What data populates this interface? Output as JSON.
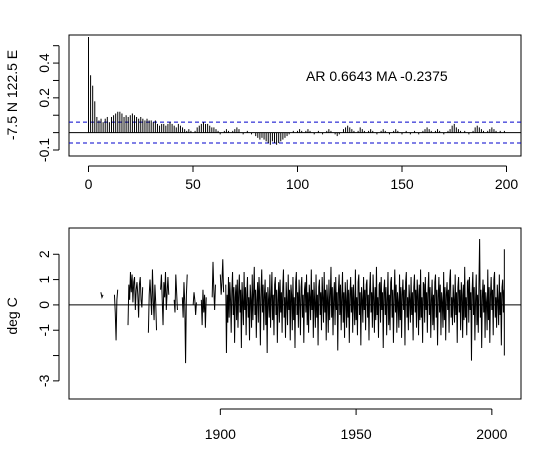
{
  "chart_data": [
    {
      "type": "bar",
      "panel": "acf",
      "ylabel": "-7.5 N 122.5 E",
      "annotation": "AR 0.6643  MA -0.2375",
      "xlim": [
        0,
        200
      ],
      "ylim": [
        -0.1,
        0.55
      ],
      "xticks": [
        "0",
        "50",
        "100",
        "150",
        "200"
      ],
      "yticks": [
        "-0.1",
        "0.2",
        "0.4"
      ],
      "confidence_band": 0.06,
      "lag_values": [
        0.55,
        0.33,
        0.27,
        0.18,
        0.09,
        0.07,
        0.08,
        0.06,
        0.08,
        0.09,
        0.06,
        0.09,
        0.1,
        0.11,
        0.12,
        0.12,
        0.11,
        0.09,
        0.1,
        0.09,
        0.1,
        0.11,
        0.1,
        0.09,
        0.08,
        0.09,
        0.08,
        0.07,
        0.08,
        0.07,
        0.07,
        0.06,
        0.07,
        0.05,
        0.04,
        0.05,
        0.05,
        0.04,
        0.05,
        0.06,
        0.05,
        0.04,
        0.03,
        0.05,
        0.04,
        0.03,
        0.02,
        0.01,
        0.02,
        0.01,
        0.0,
        0.01,
        0.03,
        0.04,
        0.05,
        0.06,
        0.05,
        0.05,
        0.04,
        0.03,
        0.03,
        0.02,
        0.01,
        -0.01,
        0.0,
        0.01,
        0.02,
        0.01,
        0.0,
        0.01,
        0.02,
        0.03,
        0.02,
        0.0,
        -0.01,
        0.0,
        0.01,
        0.0,
        -0.01,
        0.0,
        -0.02,
        -0.03,
        -0.04,
        -0.03,
        -0.04,
        -0.05,
        -0.06,
        -0.07,
        -0.05,
        -0.06,
        -0.07,
        -0.06,
        -0.05,
        -0.04,
        -0.03,
        -0.02,
        -0.01,
        0.0,
        0.01,
        0.0,
        0.01,
        0.02,
        0.01,
        0.0,
        0.01,
        0.02,
        0.01,
        0.0,
        -0.01,
        0.0,
        0.01,
        0.0,
        -0.01,
        0.0,
        0.01,
        0.02,
        0.01,
        0.0,
        -0.01,
        -0.02,
        -0.01,
        0.0,
        0.02,
        0.03,
        0.04,
        0.03,
        0.02,
        0.01,
        0.0,
        0.01,
        0.03,
        0.02,
        0.01,
        0.0,
        0.01,
        0.02,
        0.01,
        0.0,
        -0.01,
        0.0,
        0.01,
        0.02,
        0.01,
        0.0,
        -0.01,
        0.0,
        0.01,
        0.02,
        0.01,
        0.0,
        -0.01,
        0.0,
        0.01,
        0.0,
        -0.01,
        0.0,
        0.01,
        0.0,
        -0.01,
        0.0,
        0.01,
        0.02,
        0.03,
        0.02,
        0.01,
        0.0,
        0.01,
        0.02,
        0.01,
        0.0,
        -0.01,
        0.0,
        0.01,
        0.02,
        0.04,
        0.05,
        0.03,
        0.02,
        0.01,
        0.0,
        0.01,
        0.0,
        -0.01,
        0.0,
        0.01,
        0.03,
        0.04,
        0.03,
        0.02,
        0.01,
        0.0,
        0.01,
        0.02,
        0.03,
        0.02,
        0.01,
        0.0,
        0.01,
        0.0,
        0.01
      ]
    },
    {
      "type": "line",
      "panel": "series",
      "ylabel": "deg C",
      "xlim": [
        1845,
        2010
      ],
      "ylim": [
        -3.4,
        2.8
      ],
      "xticks": [
        "1900",
        "1950",
        "2000"
      ],
      "yticks": [
        "-3",
        "-1",
        "0",
        "1",
        "2"
      ],
      "segments": [
        {
          "x": [
            1856.0,
            1856.4,
            1856.8
          ],
          "y": [
            0.5,
            0.3,
            0.4
          ]
        },
        {
          "x": [
            1861.0,
            1861.3,
            1861.6,
            1861.9,
            1862.2
          ],
          "y": [
            0.4,
            -0.3,
            -1.4,
            0.2,
            0.6
          ]
        },
        {
          "x": [
            1866.0,
            1866.3,
            1866.6,
            1866.9,
            1867.2,
            1867.5,
            1867.8,
            1868.1,
            1868.4,
            1868.7,
            1869.0,
            1869.3,
            1869.6,
            1869.9,
            1870.2,
            1870.5,
            1870.8,
            1871.1,
            1871.4
          ],
          "y": [
            -0.8,
            0.8,
            0.2,
            1.3,
            0.5,
            1.2,
            0.1,
            0.9,
            1.1,
            -0.2,
            0.6,
            0.9,
            0.4,
            -0.5,
            0.8,
            1.1,
            0.2,
            -0.1,
            0.7
          ]
        },
        {
          "x": [
            1873.5,
            1873.8,
            1874.1,
            1874.4,
            1874.7,
            1875.0,
            1875.3,
            1875.6,
            1875.9,
            1876.2,
            1876.5
          ],
          "y": [
            -1.1,
            0.4,
            1.0,
            0.3,
            -0.4,
            1.4,
            0.2,
            -0.6,
            0.8,
            0.1,
            -1.0
          ]
        },
        {
          "x": [
            1878.0,
            1878.3,
            1878.6,
            1878.9,
            1879.2,
            1879.5,
            1879.8,
            1880.1,
            1880.4,
            1880.7,
            1881.0
          ],
          "y": [
            0.6,
            1.2,
            0.2,
            -0.8,
            0.9,
            0.3,
            1.3,
            -0.2,
            0.5,
            1.1,
            0.4
          ]
        },
        {
          "x": [
            1883.0,
            1883.3,
            1883.6,
            1883.9,
            1884.2
          ],
          "y": [
            0.2,
            -0.3,
            1.2,
            0.5,
            -0.2
          ]
        },
        {
          "x": [
            1886.0,
            1886.3,
            1886.6,
            1886.9,
            1887.2,
            1887.5,
            1887.8
          ],
          "y": [
            0.3,
            -0.5,
            0.9,
            0.1,
            -2.3,
            0.4,
            1.2
          ]
        },
        {
          "x": [
            1890.0,
            1890.3,
            1890.6,
            1890.9,
            1891.2
          ],
          "y": [
            0.0,
            0.5,
            0.2,
            -0.4,
            0.1
          ]
        },
        {
          "x": [
            1893.0,
            1893.3,
            1893.6,
            1893.9,
            1894.2,
            1894.5,
            1894.8
          ],
          "y": [
            0.2,
            -0.8,
            0.6,
            -0.3,
            0.4,
            -0.9,
            0.3
          ]
        },
        {
          "x": [
            1897.0,
            1897.3,
            1897.6,
            1897.9,
            1898.2
          ],
          "y": [
            0.3,
            1.7,
            0.6,
            -0.2,
            0.8
          ]
        },
        {
          "x": [
            1900.0,
            1900.3,
            1900.6,
            1900.9,
            1901.2
          ],
          "y": [
            1.2,
            0.4,
            0.9,
            1.8,
            0.5
          ]
        }
      ],
      "dense_from": 1902.0,
      "dense_to": 2004.6,
      "dense_step": 0.25,
      "dense_values_note_excluded": false,
      "dense_values": [
        0.8,
        -1.9,
        0.4,
        -0.7,
        1.1,
        -0.5,
        0.9,
        0.2,
        -1.1,
        0.6,
        1.3,
        -0.4,
        0.7,
        -1.5,
        0.3,
        0.8,
        -0.6,
        1.0,
        -0.9,
        0.5,
        1.2,
        -0.3,
        0.6,
        -1.7,
        0.9,
        0.1,
        -0.8,
        1.3,
        -0.2,
        0.7,
        -1.2,
        0.4,
        1.1,
        -0.5,
        0.3,
        -1.4,
        0.8,
        0.2,
        -0.9,
        1.2,
        -0.6,
        0.5,
        1.5,
        -0.4,
        0.6,
        -1.3,
        0.2,
        0.9,
        -0.7,
        1.1,
        0.3,
        -1.6,
        0.6,
        1.4,
        -0.3,
        0.8,
        -1.0,
        0.4,
        1.0,
        -0.8,
        0.5,
        -1.9,
        0.7,
        0.2,
        -0.5,
        1.2,
        -0.9,
        0.3,
        1.3,
        -0.6,
        0.4,
        -1.2,
        0.8,
        1.1,
        -0.4,
        0.6,
        -1.5,
        0.2,
        0.9,
        -0.7,
        1.0,
        -0.3,
        0.5,
        -1.1,
        0.7,
        1.4,
        -0.5,
        0.3,
        -1.3,
        0.9,
        0.1,
        -0.8,
        1.2,
        -0.2,
        0.6,
        -1.4,
        0.8,
        0.4,
        -1.0,
        1.1,
        -0.6,
        0.3,
        -1.7,
        0.9,
        1.3,
        -0.4,
        0.5,
        -0.9,
        1.0,
        0.2,
        -1.2,
        0.7,
        1.1,
        -0.5,
        0.4,
        -1.5,
        0.6,
        0.9,
        -0.3,
        1.2,
        -0.8,
        0.5,
        -1.1,
        0.8,
        0.3,
        -0.6,
        1.4,
        -0.2,
        0.6,
        -1.3,
        0.9,
        0.1,
        -0.9,
        1.2,
        -0.5,
        0.4,
        -1.6,
        0.7,
        1.0,
        -0.4,
        0.5,
        -1.0,
        1.1,
        0.3,
        -0.7,
        1.3,
        -0.3,
        0.6,
        -1.4,
        0.8,
        0.2,
        -1.1,
        1.0,
        -0.6,
        0.4,
        1.5,
        -0.5,
        0.7,
        -1.2,
        0.3,
        0.9,
        -0.8,
        1.1,
        -0.2,
        0.5,
        -1.8,
        0.6,
        1.2,
        -0.4,
        0.8,
        -1.0,
        0.3,
        1.3,
        -0.7,
        0.5,
        -1.3,
        0.9,
        0.2,
        -0.9,
        1.0,
        -0.5,
        0.6,
        -1.5,
        0.4,
        1.1,
        -0.3,
        0.7,
        -1.1,
        0.8,
        0.1,
        -0.8,
        1.4,
        -0.6,
        0.3,
        -1.2,
        0.9,
        1.2,
        -0.4,
        0.5,
        -1.6,
        0.7,
        0.2,
        -0.7,
        1.1,
        -0.2,
        0.6,
        -1.0,
        0.8,
        1.0,
        -0.5,
        0.4,
        -1.4,
        0.6,
        1.3,
        -0.3,
        0.5,
        -0.9,
        1.2,
        0.3,
        -1.1,
        0.7,
        -0.6,
        1.5,
        -0.4,
        0.3,
        -1.3,
        0.8,
        0.9,
        -0.7,
        1.1,
        -0.2,
        0.5,
        -1.7,
        0.6,
        1.0,
        -0.4,
        0.7,
        -1.2,
        0.2,
        1.3,
        -0.8,
        0.4,
        -1.0,
        0.9,
        1.1,
        -0.5,
        0.6,
        -1.5,
        0.3,
        1.4,
        -0.3,
        0.8,
        -1.1,
        0.5,
        0.1,
        -0.9,
        1.2,
        -0.6,
        0.7,
        -1.3,
        0.4,
        1.0,
        -0.2,
        0.6,
        -1.6,
        0.9,
        1.3,
        -0.5,
        0.3,
        -1.0,
        0.8,
        0.2,
        -0.7,
        1.1,
        -0.4,
        0.5,
        -1.4,
        0.7,
        1.2,
        -0.3,
        0.6,
        -0.9,
        1.0,
        0.4,
        -1.2,
        0.8,
        -0.6,
        1.4,
        -0.5,
        0.3,
        -1.5,
        0.9,
        0.8,
        -0.7,
        1.1,
        -0.2,
        0.5,
        -1.1,
        0.6,
        1.3,
        -0.4,
        0.7,
        -1.3,
        0.2,
        1.0,
        -0.8,
        0.4,
        -1.0,
        0.9,
        1.2,
        -0.5,
        0.6,
        -1.6,
        0.3,
        1.1,
        -0.3,
        0.8,
        -1.2,
        0.5,
        0.1,
        -0.9,
        1.3,
        -0.6,
        0.7,
        -1.4,
        0.4,
        0.9,
        -0.2,
        0.6,
        -1.1,
        1.0,
        1.4,
        -0.5,
        0.3,
        -0.8,
        0.8,
        0.2,
        -0.7,
        1.2,
        -0.4,
        0.5,
        -1.5,
        0.7,
        1.1,
        -0.3,
        0.6,
        -1.0,
        0.9,
        0.4,
        -1.3,
        0.8,
        -0.6,
        1.5,
        -0.5,
        0.3,
        -1.2,
        0.9,
        1.0,
        -0.7,
        1.1,
        -0.2,
        0.5,
        -2.2,
        0.6,
        1.3,
        -0.4,
        0.7,
        -1.4,
        0.2,
        1.2,
        -0.8,
        0.4,
        -1.1,
        0.9,
        2.6,
        -0.5,
        0.6,
        -1.7,
        0.3,
        1.0,
        -0.3,
        0.8,
        -1.3,
        0.5,
        0.1,
        -1.0,
        1.4,
        -0.6,
        0.7,
        -1.5,
        0.4,
        1.1,
        -0.2,
        0.6,
        -1.2,
        1.0,
        1.3,
        -0.5,
        0.3,
        -0.9,
        0.8,
        0.2,
        -0.8,
        1.2,
        -0.4,
        0.5,
        -1.6,
        0.7,
        1.0,
        -0.3,
        0.6,
        -1.1,
        0.9,
        0.4,
        -1.4,
        0.8,
        -0.6,
        1.4,
        -0.5,
        0.3,
        -2.0,
        0.9,
        1.1,
        -0.7,
        1.2,
        -0.2,
        0.5,
        -1.3,
        0.6,
        1.5,
        -0.4,
        0.7,
        -1.0,
        0.2,
        1.3,
        -0.8,
        0.4,
        -1.2,
        0.9,
        1.0,
        -0.5,
        0.6,
        -1.5,
        0.3,
        1.2,
        -0.3,
        0.8,
        -0.9,
        0.5,
        0.1,
        -1.1,
        1.1,
        -0.6,
        0.7,
        -1.4,
        0.4,
        1.3,
        -0.2,
        0.6,
        -1.0,
        1.0,
        1.4,
        -0.5,
        0.3,
        -1.3,
        0.8,
        0.2,
        -0.7,
        1.5,
        -0.4,
        0.5,
        -1.6,
        0.7,
        1.1,
        -0.3,
        0.6,
        -1.2,
        0.9,
        0.4,
        -0.9,
        0.8,
        -0.6,
        1.2,
        -0.5,
        0.3,
        -1.4,
        0.9,
        1.3,
        -0.7,
        1.0,
        -0.2,
        0.5,
        -1.1,
        0.6,
        1.4,
        -0.4,
        0.7,
        -1.3,
        0.2,
        1.1,
        -0.8,
        0.4,
        -1.0,
        0.9,
        1.2,
        -0.5,
        0.6,
        -1.5,
        0.3,
        1.0,
        -0.3,
        0.8,
        -1.2,
        0.5,
        0.1,
        -0.9,
        1.3,
        -0.6,
        0.7,
        -1.4,
        0.4,
        1.1,
        -0.2,
        0.6,
        -1.1,
        1.0,
        1.5,
        -0.5,
        0.3,
        -1.0,
        0.8,
        0.2,
        -0.8,
        1.2,
        -0.4,
        0.5,
        -1.3,
        0.7,
        1.0,
        -0.3,
        0.6,
        -1.5,
        0.9,
        0.4,
        -1.1,
        0.8,
        -0.6,
        1.4,
        -0.5,
        0.3,
        -1.2,
        0.9,
        1.1,
        -0.7,
        1.3,
        -0.2,
        0.5,
        -1.0,
        0.6,
        1.2,
        -0.4,
        0.7,
        -1.4,
        0.2,
        1.0,
        -0.8,
        0.4,
        -1.1,
        0.9,
        1.3,
        -0.5,
        0.6,
        -1.3,
        0.3,
        1.1,
        -0.3,
        0.8,
        -0.9,
        0.5,
        0.1,
        -1.2,
        1.4,
        -0.6,
        0.7,
        -1.0,
        0.4,
        0.9,
        -0.2,
        0.6,
        -1.3,
        1.0,
        1.2,
        -0.5,
        0.3,
        -1.1,
        0.8,
        0.2,
        -0.7,
        1.3,
        -0.4,
        0.5,
        -1.4,
        0.7,
        1.1,
        -0.3,
        0.6,
        -0.9,
        0.9,
        0.4,
        -1.2,
        0.8,
        -0.6,
        1.5,
        -0.5,
        0.3,
        -1.0,
        0.9,
        1.0,
        -0.7,
        1.2,
        -0.2,
        0.5,
        -1.3,
        0.6,
        1.3,
        -0.4,
        0.7,
        -1.1,
        0.2,
        1.1,
        -0.8,
        0.4,
        -0.9,
        0.9,
        1.4,
        -0.5,
        0.6,
        -1.2,
        0.3,
        1.0,
        -0.3,
        0.8,
        -1.0,
        0.5,
        0.1,
        -0.8,
        1.2,
        -0.6,
        0.7,
        -1.3,
        0.4,
        1.1,
        -0.2,
        0.6,
        -0.9,
        1.0,
        1.3,
        -0.5,
        0.3,
        -1.1,
        0.8,
        0.2,
        -0.7,
        1.4,
        -0.4,
        0.5,
        -1.0,
        0.7,
        1.2,
        -0.3,
        0.6,
        -1.2,
        0.9,
        0.4,
        -0.8,
        1.6,
        0.8,
        1.9,
        1.2,
        1.5,
        0.9,
        1.4,
        1.1,
        1.8,
        1.0,
        1.3,
        0.7,
        1.6,
        1.1,
        1.4,
        0.9,
        2.2,
        1.2,
        1.7,
        1.0,
        1.3
      ]
    }
  ],
  "colors": {
    "line": "#000000",
    "confidence": "#0000cc",
    "background": "#ffffff"
  }
}
